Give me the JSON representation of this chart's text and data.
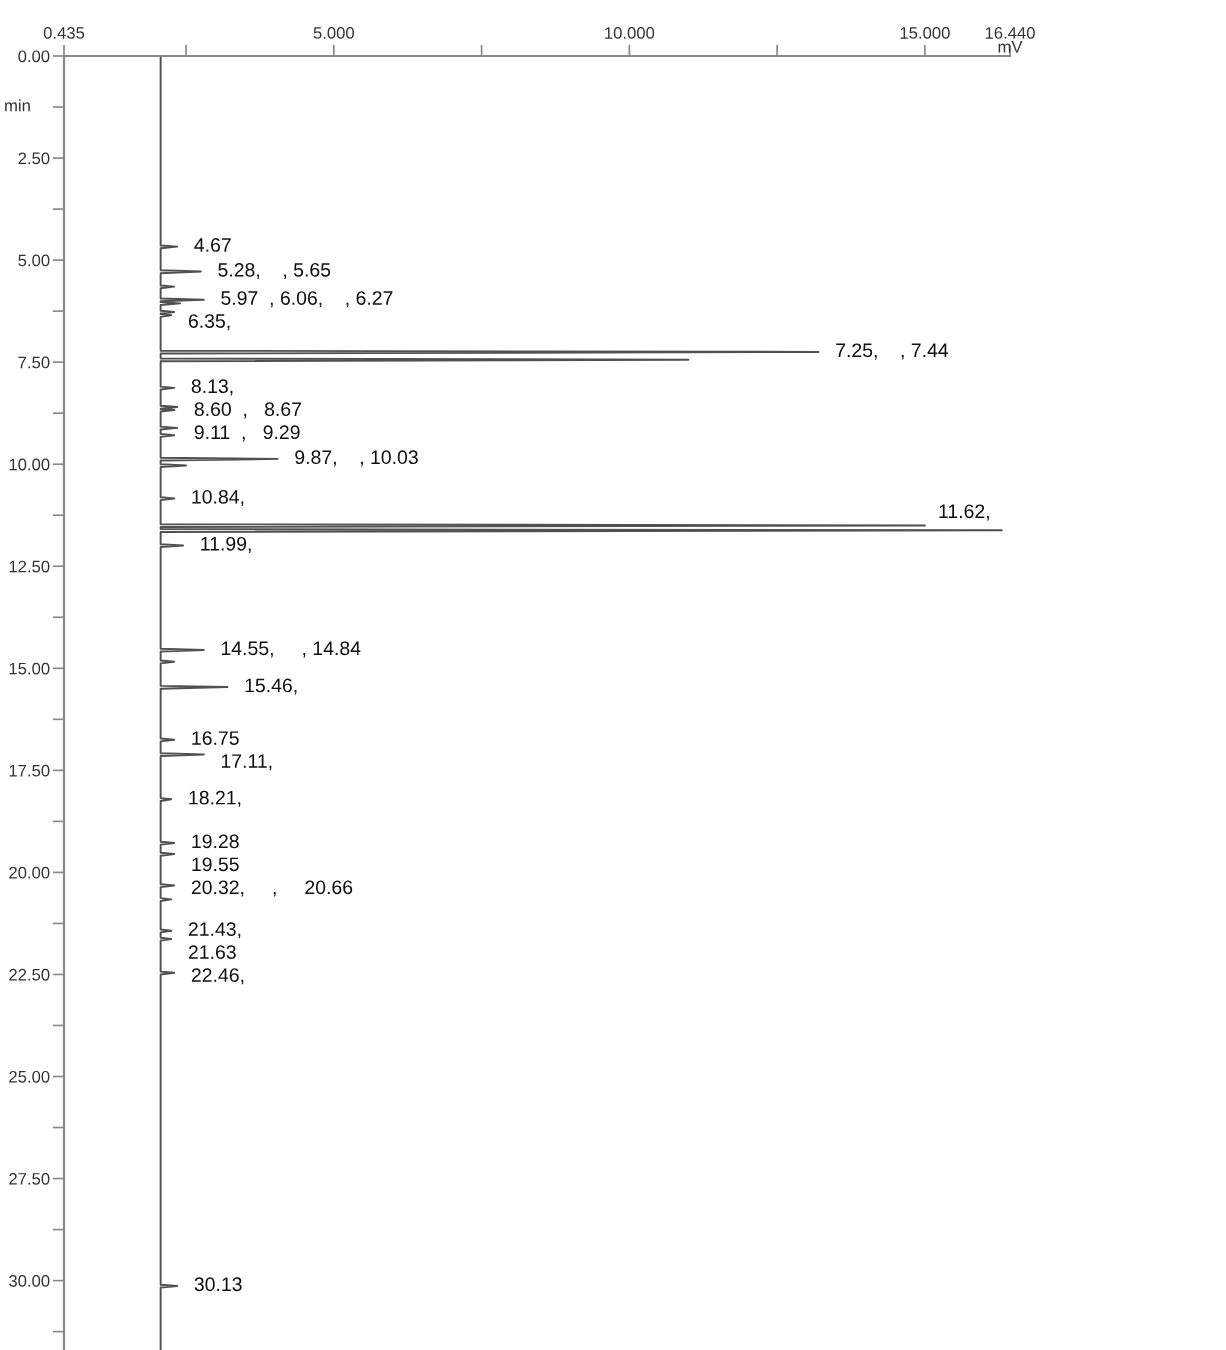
{
  "chart_data": {
    "type": "line",
    "xlabel": "mV",
    "ylabel": "min",
    "xlim": [
      0.435,
      16.44
    ],
    "ylim": [
      31.7,
      0
    ],
    "xticks": [
      0.435,
      {
        "value": 2.5,
        "label": null
      },
      {
        "value": 5,
        "label": "5.000"
      },
      {
        "value": 7.5,
        "label": null
      },
      {
        "value": 10,
        "label": "10.000"
      },
      {
        "value": 12.5,
        "label": null
      },
      {
        "value": 15,
        "label": "15.000"
      },
      {
        "value": 16.44,
        "label": "16.440"
      }
    ],
    "yticks": [
      {
        "value": 0,
        "label": "0.00"
      },
      {
        "value": 1.25,
        "label": null
      },
      {
        "value": 2.5,
        "label": "2.50"
      },
      {
        "value": 3.75,
        "label": null
      },
      {
        "value": 5,
        "label": "5.00"
      },
      {
        "value": 6.25,
        "label": null
      },
      {
        "value": 7.5,
        "label": "7.50"
      },
      {
        "value": 8.75,
        "label": null
      },
      {
        "value": 10,
        "label": "10.00"
      },
      {
        "value": 11.25,
        "label": null
      },
      {
        "value": 12.5,
        "label": "12.50"
      },
      {
        "value": 13.75,
        "label": null
      },
      {
        "value": 15,
        "label": "15.00"
      },
      {
        "value": 16.25,
        "label": null
      },
      {
        "value": 17.5,
        "label": "17.50"
      },
      {
        "value": 18.75,
        "label": null
      },
      {
        "value": 20,
        "label": "20.00"
      },
      {
        "value": 21.25,
        "label": null
      },
      {
        "value": 22.5,
        "label": "22.50"
      },
      {
        "value": 23.75,
        "label": null
      },
      {
        "value": 25,
        "label": "25.00"
      },
      {
        "value": 26.25,
        "label": null
      },
      {
        "value": 27.5,
        "label": "27.50"
      },
      {
        "value": 28.75,
        "label": null
      },
      {
        "value": 30,
        "label": "30.00"
      },
      {
        "value": 31.25,
        "label": null
      }
    ],
    "grid": false,
    "marker": "none",
    "line_style": "solid",
    "series": [
      {
        "color": "#505050",
        "x": [
          2.07,
          2.07,
          2.35,
          2.07,
          2.07,
          2.75,
          2.07,
          2.07,
          2.3,
          2.07,
          2.07,
          2.8,
          2.07,
          2.07,
          2.4,
          2.07,
          2.07,
          2.3,
          2.07,
          2.07,
          2.25,
          2.07,
          2.07,
          13.2,
          2.07,
          2.07,
          11.0,
          2.07,
          2.07,
          2.3,
          2.07,
          2.07,
          2.35,
          2.07,
          2.07,
          2.3,
          2.07,
          2.07,
          2.35,
          2.07,
          2.07,
          2.3,
          2.07,
          2.07,
          4.05,
          2.07,
          2.07,
          2.5,
          2.07,
          2.07,
          2.3,
          2.07,
          2.07,
          15.0,
          2.07,
          2.07,
          16.3,
          2.07,
          2.07,
          2.45,
          2.07,
          2.07,
          2.8,
          2.07,
          2.07,
          2.3,
          2.07,
          2.07,
          3.2,
          2.07,
          2.07,
          2.3,
          2.07,
          2.07,
          2.8,
          2.07,
          2.07,
          2.25,
          2.07,
          2.07,
          2.3,
          2.07,
          2.07,
          2.3,
          2.07,
          2.07,
          2.3,
          2.07,
          2.07,
          2.25,
          2.07,
          2.07,
          2.25,
          2.07,
          2.07,
          2.25,
          2.07,
          2.07,
          2.3,
          2.07,
          2.07,
          2.35,
          2.07,
          2.07
        ],
        "values": [
          0,
          4.64,
          4.67,
          4.71,
          5.25,
          5.28,
          5.32,
          5.62,
          5.65,
          5.69,
          5.94,
          5.97,
          6.01,
          6.03,
          6.06,
          6.1,
          6.24,
          6.27,
          6.31,
          6.32,
          6.35,
          6.39,
          7.22,
          7.25,
          7.29,
          7.41,
          7.44,
          7.48,
          8.1,
          8.13,
          8.17,
          8.57,
          8.6,
          8.64,
          8.65,
          8.67,
          8.71,
          9.08,
          9.11,
          9.15,
          9.26,
          9.29,
          9.33,
          9.84,
          9.87,
          9.91,
          10.0,
          10.03,
          10.07,
          10.81,
          10.84,
          10.88,
          11.47,
          11.5,
          11.54,
          11.59,
          11.62,
          11.66,
          11.96,
          11.99,
          12.03,
          14.52,
          14.55,
          14.59,
          14.81,
          14.84,
          14.88,
          15.43,
          15.46,
          15.5,
          16.72,
          16.75,
          16.79,
          17.08,
          17.11,
          17.15,
          18.18,
          18.21,
          18.25,
          19.25,
          19.28,
          19.32,
          19.52,
          19.55,
          19.59,
          20.29,
          20.32,
          20.36,
          20.63,
          20.66,
          20.7,
          21.4,
          21.43,
          21.47,
          21.6,
          21.63,
          21.67,
          22.43,
          22.46,
          22.5,
          30.1,
          30.13,
          30.17,
          31.7
        ]
      }
    ],
    "annotations": [
      {
        "text": "4.67",
        "x": 2.35,
        "y": 4.67
      },
      {
        "text": "5.28,    , 5.65",
        "x": 2.75,
        "y": 5.28
      },
      {
        "text": "5.97  , 6.06,    , 6.27",
        "x": 2.8,
        "y": 5.97
      },
      {
        "text": "6.35,",
        "x": 2.25,
        "y": 6.35
      },
      {
        "text": "7.25,    , 7.44",
        "x": 13.2,
        "y": 7.25
      },
      {
        "text": "8.13,",
        "x": 2.3,
        "y": 8.13
      },
      {
        "text": "8.60  ,   8.67",
        "x": 2.35,
        "y": 8.6
      },
      {
        "text": "9.11  ,   9.29",
        "x": 2.35,
        "y": 9.11
      },
      {
        "text": "9.87,    , 10.03",
        "x": 4.05,
        "y": 9.87
      },
      {
        "text": "10.84,",
        "x": 2.3,
        "y": 10.84
      },
      {
        "text": "11.62,",
        "x": 16.3,
        "y": 11.62
      },
      {
        "text": "11.99,",
        "x": 2.45,
        "y": 11.99
      },
      {
        "text": "14.55,     , 14.84",
        "x": 2.8,
        "y": 14.55
      },
      {
        "text": "15.46,",
        "x": 3.2,
        "y": 15.46
      },
      {
        "text": "16.75",
        "x": 2.3,
        "y": 16.75
      },
      {
        "text": "17.11,",
        "x": 2.8,
        "y": 17.11
      },
      {
        "text": "18.21,",
        "x": 2.25,
        "y": 18.21
      },
      {
        "text": "19.28",
        "x": 2.3,
        "y": 19.28
      },
      {
        "text": "19.55",
        "x": 2.3,
        "y": 19.55
      },
      {
        "text": "20.32,     ,     20.66",
        "x": 2.3,
        "y": 20.32
      },
      {
        "text": "21.43,",
        "x": 2.25,
        "y": 21.43
      },
      {
        "text": "21.63",
        "x": 2.25,
        "y": 21.63
      },
      {
        "text": "22.46,",
        "x": 2.3,
        "y": 22.46
      },
      {
        "text": "30.13",
        "x": 2.35,
        "y": 30.13
      }
    ]
  }
}
